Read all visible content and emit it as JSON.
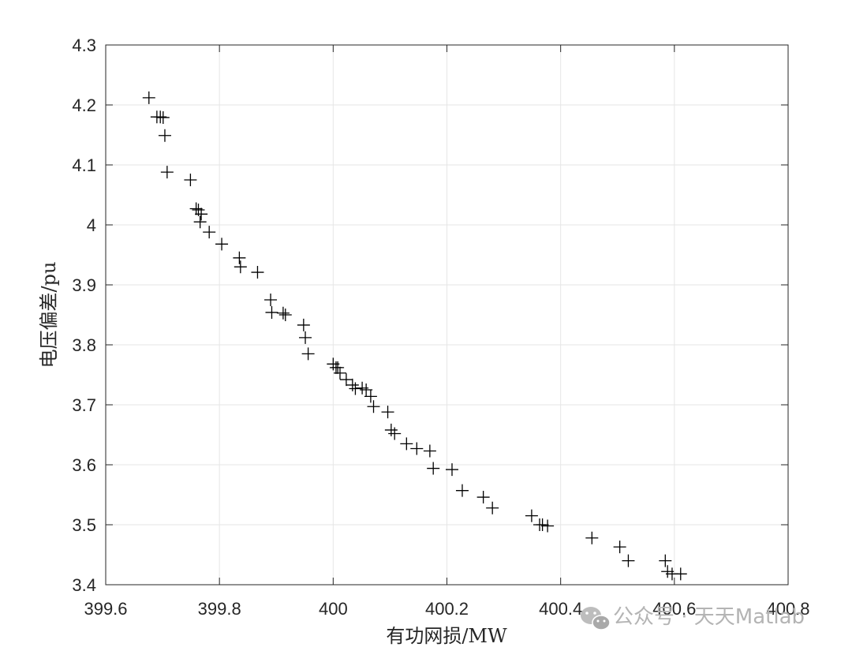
{
  "chart_data": {
    "type": "scatter",
    "title": "",
    "xlabel": "有功网损/MW",
    "ylabel": "电压偏差/pu",
    "xlim": [
      399.6,
      400.8
    ],
    "ylim": [
      3.4,
      4.3
    ],
    "xticks": [
      399.6,
      399.8,
      400,
      400.2,
      400.4,
      400.6,
      400.8
    ],
    "xtick_labels": [
      "399.6",
      "399.8",
      "400",
      "400.2",
      "400.4",
      "400.6",
      "400.8"
    ],
    "yticks": [
      3.4,
      3.5,
      3.6,
      3.7,
      3.8,
      3.9,
      4.0,
      4.1,
      4.2,
      4.3
    ],
    "ytick_labels": [
      "3.4",
      "3.5",
      "3.6",
      "3.7",
      "3.8",
      "3.9",
      "4",
      "4.1",
      "4.2",
      "4.3"
    ],
    "grid": true,
    "marker": "+",
    "marker_color": "#000000",
    "series": [
      {
        "name": "",
        "points": [
          [
            399.676,
            4.212
          ],
          [
            399.69,
            4.18
          ],
          [
            399.696,
            4.18
          ],
          [
            399.701,
            4.179
          ],
          [
            399.704,
            4.149
          ],
          [
            399.708,
            4.088
          ],
          [
            399.749,
            4.075
          ],
          [
            399.759,
            4.027
          ],
          [
            399.763,
            4.025
          ],
          [
            399.768,
            4.018
          ],
          [
            399.766,
            4.005
          ],
          [
            399.782,
            3.988
          ],
          [
            399.804,
            3.968
          ],
          [
            399.835,
            3.945
          ],
          [
            399.837,
            3.93
          ],
          [
            399.867,
            3.921
          ],
          [
            399.89,
            3.875
          ],
          [
            399.892,
            3.854
          ],
          [
            399.912,
            3.853
          ],
          [
            399.916,
            3.85
          ],
          [
            399.948,
            3.833
          ],
          [
            399.951,
            3.812
          ],
          [
            399.956,
            3.785
          ],
          [
            400.0,
            3.768
          ],
          [
            400.005,
            3.762
          ],
          [
            400.008,
            3.762
          ],
          [
            400.012,
            3.753
          ],
          [
            400.023,
            3.742
          ],
          [
            400.034,
            3.733
          ],
          [
            400.039,
            3.727
          ],
          [
            400.051,
            3.728
          ],
          [
            400.058,
            3.725
          ],
          [
            400.066,
            3.714
          ],
          [
            400.071,
            3.697
          ],
          [
            400.096,
            3.688
          ],
          [
            400.102,
            3.658
          ],
          [
            400.108,
            3.652
          ],
          [
            400.129,
            3.635
          ],
          [
            400.147,
            3.627
          ],
          [
            400.17,
            3.623
          ],
          [
            400.176,
            3.594
          ],
          [
            400.209,
            3.592
          ],
          [
            400.227,
            3.557
          ],
          [
            400.264,
            3.546
          ],
          [
            400.28,
            3.528
          ],
          [
            400.349,
            3.515
          ],
          [
            400.363,
            3.5
          ],
          [
            400.368,
            3.5
          ],
          [
            400.377,
            3.498
          ],
          [
            400.455,
            3.478
          ],
          [
            400.504,
            3.463
          ],
          [
            400.519,
            3.44
          ],
          [
            400.584,
            3.44
          ],
          [
            400.588,
            3.422
          ],
          [
            400.596,
            3.418
          ],
          [
            400.611,
            3.418
          ]
        ]
      }
    ]
  },
  "watermark": {
    "text": "公众号 · 天天Matlab",
    "icon": "wechat-icon",
    "color": "#b4b4b4"
  }
}
